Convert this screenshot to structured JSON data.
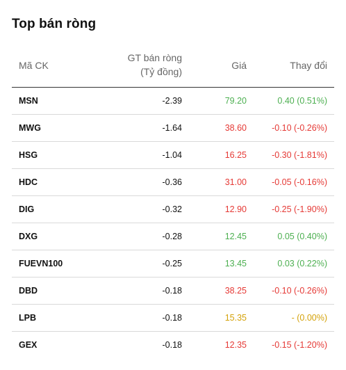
{
  "title": "Top bán ròng",
  "headers": {
    "code": "Mã CK",
    "value_line1": "GT bán ròng",
    "value_line2": "(Tỷ đồng)",
    "price": "Giá",
    "change": "Thay đổi"
  },
  "colors": {
    "up": "#4caf50",
    "down": "#e53935",
    "reference": "#d4a20a"
  },
  "rows": [
    {
      "code": "MSN",
      "value": "-2.39",
      "price": "79.20",
      "change": "0.40 (0.51%)",
      "trend": "up"
    },
    {
      "code": "MWG",
      "value": "-1.64",
      "price": "38.60",
      "change": "-0.10 (-0.26%)",
      "trend": "down"
    },
    {
      "code": "HSG",
      "value": "-1.04",
      "price": "16.25",
      "change": "-0.30 (-1.81%)",
      "trend": "down"
    },
    {
      "code": "HDC",
      "value": "-0.36",
      "price": "31.00",
      "change": "-0.05 (-0.16%)",
      "trend": "down"
    },
    {
      "code": "DIG",
      "value": "-0.32",
      "price": "12.90",
      "change": "-0.25 (-1.90%)",
      "trend": "down"
    },
    {
      "code": "DXG",
      "value": "-0.28",
      "price": "12.45",
      "change": "0.05 (0.40%)",
      "trend": "up"
    },
    {
      "code": "FUEVN100",
      "value": "-0.25",
      "price": "13.45",
      "change": "0.03 (0.22%)",
      "trend": "up"
    },
    {
      "code": "DBD",
      "value": "-0.18",
      "price": "38.25",
      "change": "-0.10 (-0.26%)",
      "trend": "down"
    },
    {
      "code": "LPB",
      "value": "-0.18",
      "price": "15.35",
      "change": "- (0.00%)",
      "trend": "ref"
    },
    {
      "code": "GEX",
      "value": "-0.18",
      "price": "12.35",
      "change": "-0.15 (-1.20%)",
      "trend": "down"
    }
  ]
}
